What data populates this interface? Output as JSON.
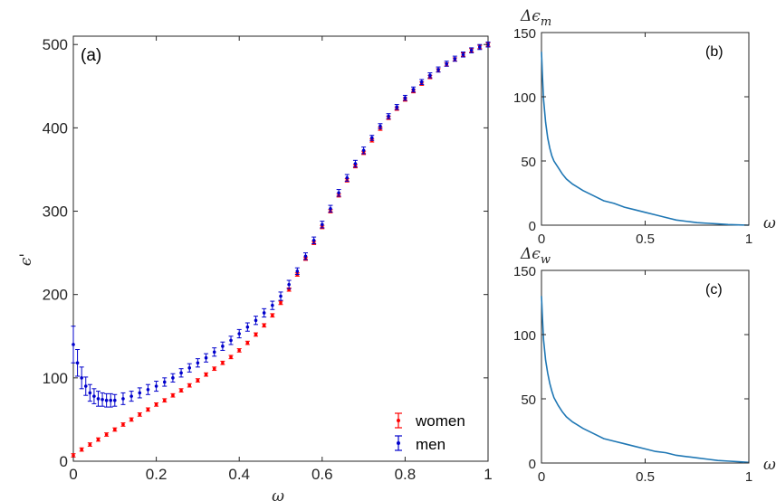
{
  "chart_data": [
    {
      "type": "scatter",
      "panel_label": "(a)",
      "xlabel": "ω",
      "ylabel": "ϵ'",
      "xlim": [
        0,
        1
      ],
      "ylim": [
        0,
        510
      ],
      "xticks": [
        "0",
        "0.2",
        "0.4",
        "0.6",
        "0.8",
        "1"
      ],
      "yticks": [
        "0",
        "100",
        "200",
        "300",
        "400",
        "500"
      ],
      "legend_position": "bottom-right",
      "grid": false,
      "series": [
        {
          "name": "women",
          "color": "#ff0000",
          "x": [
            0,
            0.02,
            0.04,
            0.06,
            0.08,
            0.1,
            0.12,
            0.14,
            0.16,
            0.18,
            0.2,
            0.22,
            0.24,
            0.26,
            0.28,
            0.3,
            0.32,
            0.34,
            0.36,
            0.38,
            0.4,
            0.42,
            0.44,
            0.46,
            0.48,
            0.5,
            0.52,
            0.54,
            0.56,
            0.58,
            0.6,
            0.62,
            0.64,
            0.66,
            0.68,
            0.7,
            0.72,
            0.74,
            0.76,
            0.78,
            0.8,
            0.82,
            0.84,
            0.86,
            0.88,
            0.9,
            0.92,
            0.94,
            0.96,
            0.98,
            1
          ],
          "y": [
            7,
            14,
            20,
            26,
            32,
            38,
            44,
            50,
            56,
            62,
            68,
            73,
            79,
            85,
            91,
            97,
            104,
            111,
            118,
            125,
            133,
            142,
            152,
            163,
            175,
            190,
            206,
            224,
            243,
            262,
            281,
            300,
            319,
            337,
            354,
            370,
            385,
            399,
            412,
            423,
            434,
            444,
            453,
            461,
            469,
            476,
            482,
            488,
            493,
            497,
            500
          ],
          "error": [
            2,
            2,
            2,
            2,
            2,
            2,
            2,
            2,
            2,
            2,
            2,
            2,
            2,
            2,
            2,
            2,
            2,
            2,
            2,
            2,
            2,
            2,
            2,
            2,
            2,
            2,
            2,
            2,
            2,
            2,
            2,
            2,
            2,
            2,
            2,
            2,
            2,
            2,
            2,
            2,
            2,
            2,
            2,
            2,
            2,
            2,
            2,
            2,
            2,
            2,
            2
          ]
        },
        {
          "name": "men",
          "color": "#0000cc",
          "x": [
            0,
            0.01,
            0.02,
            0.03,
            0.04,
            0.05,
            0.06,
            0.07,
            0.08,
            0.09,
            0.1,
            0.12,
            0.14,
            0.16,
            0.18,
            0.2,
            0.22,
            0.24,
            0.26,
            0.28,
            0.3,
            0.32,
            0.34,
            0.36,
            0.38,
            0.4,
            0.42,
            0.44,
            0.46,
            0.48,
            0.5,
            0.52,
            0.54,
            0.56,
            0.58,
            0.6,
            0.62,
            0.64,
            0.66,
            0.68,
            0.7,
            0.72,
            0.74,
            0.76,
            0.78,
            0.8,
            0.82,
            0.84,
            0.86,
            0.88,
            0.9,
            0.92,
            0.94,
            0.96,
            0.98,
            1
          ],
          "y": [
            140,
            118,
            100,
            90,
            82,
            78,
            75,
            74,
            73,
            73,
            73,
            75,
            78,
            82,
            86,
            90,
            95,
            100,
            106,
            112,
            118,
            124,
            131,
            138,
            145,
            153,
            161,
            169,
            178,
            187,
            198,
            212,
            228,
            246,
            265,
            284,
            303,
            322,
            340,
            357,
            373,
            388,
            402,
            414,
            425,
            436,
            446,
            455,
            463,
            470,
            477,
            483,
            488,
            493,
            497,
            500
          ],
          "error": [
            22,
            16,
            13,
            11,
            10,
            9,
            9,
            8,
            8,
            8,
            7,
            7,
            6,
            6,
            6,
            6,
            5,
            5,
            5,
            5,
            5,
            5,
            5,
            5,
            5,
            5,
            5,
            5,
            5,
            5,
            5,
            5,
            4,
            4,
            4,
            4,
            4,
            4,
            4,
            4,
            4,
            3,
            3,
            3,
            3,
            3,
            3,
            3,
            3,
            3,
            3,
            3,
            3,
            3,
            3,
            3
          ]
        }
      ]
    },
    {
      "type": "line",
      "panel_label": "(b)",
      "ylabel": "Δϵm",
      "ylabel_main": "Δϵ",
      "ylabel_sub": "m",
      "xlabel": "ω",
      "xlim": [
        0,
        1
      ],
      "ylim": [
        0,
        150
      ],
      "xticks": [
        "0",
        "0.5",
        "1"
      ],
      "yticks": [
        "0",
        "50",
        "100",
        "150"
      ],
      "color": "#1f77b4",
      "x": [
        0,
        0.005,
        0.01,
        0.02,
        0.03,
        0.04,
        0.05,
        0.06,
        0.08,
        0.1,
        0.12,
        0.15,
        0.2,
        0.25,
        0.3,
        0.35,
        0.4,
        0.45,
        0.5,
        0.55,
        0.6,
        0.65,
        0.7,
        0.75,
        0.8,
        0.85,
        0.9,
        0.95,
        1
      ],
      "y": [
        135,
        115,
        98,
        80,
        68,
        60,
        54,
        50,
        45,
        40,
        36,
        32,
        27,
        23,
        19,
        17,
        14,
        12,
        10,
        8,
        6,
        4,
        3,
        2,
        1.5,
        1,
        0.5,
        0.2,
        0
      ]
    },
    {
      "type": "line",
      "panel_label": "(c)",
      "ylabel": "Δϵw",
      "ylabel_main": "Δϵ",
      "ylabel_sub": "w",
      "xlabel": "ω",
      "xlim": [
        0,
        1
      ],
      "ylim": [
        0,
        150
      ],
      "xticks": [
        "0",
        "0.5",
        "1"
      ],
      "yticks": [
        "0",
        "50",
        "100",
        "150"
      ],
      "color": "#1f77b4",
      "x": [
        0,
        0.005,
        0.01,
        0.02,
        0.03,
        0.04,
        0.05,
        0.06,
        0.08,
        0.1,
        0.12,
        0.15,
        0.2,
        0.25,
        0.3,
        0.35,
        0.4,
        0.45,
        0.5,
        0.55,
        0.6,
        0.65,
        0.7,
        0.75,
        0.8,
        0.85,
        0.9,
        0.95,
        1
      ],
      "y": [
        130,
        112,
        96,
        80,
        70,
        62,
        56,
        51,
        45,
        40,
        36,
        32,
        27,
        23,
        19,
        17,
        15,
        13,
        11,
        9,
        8,
        6,
        5,
        4,
        3,
        2,
        1.5,
        1,
        0.5
      ]
    }
  ]
}
